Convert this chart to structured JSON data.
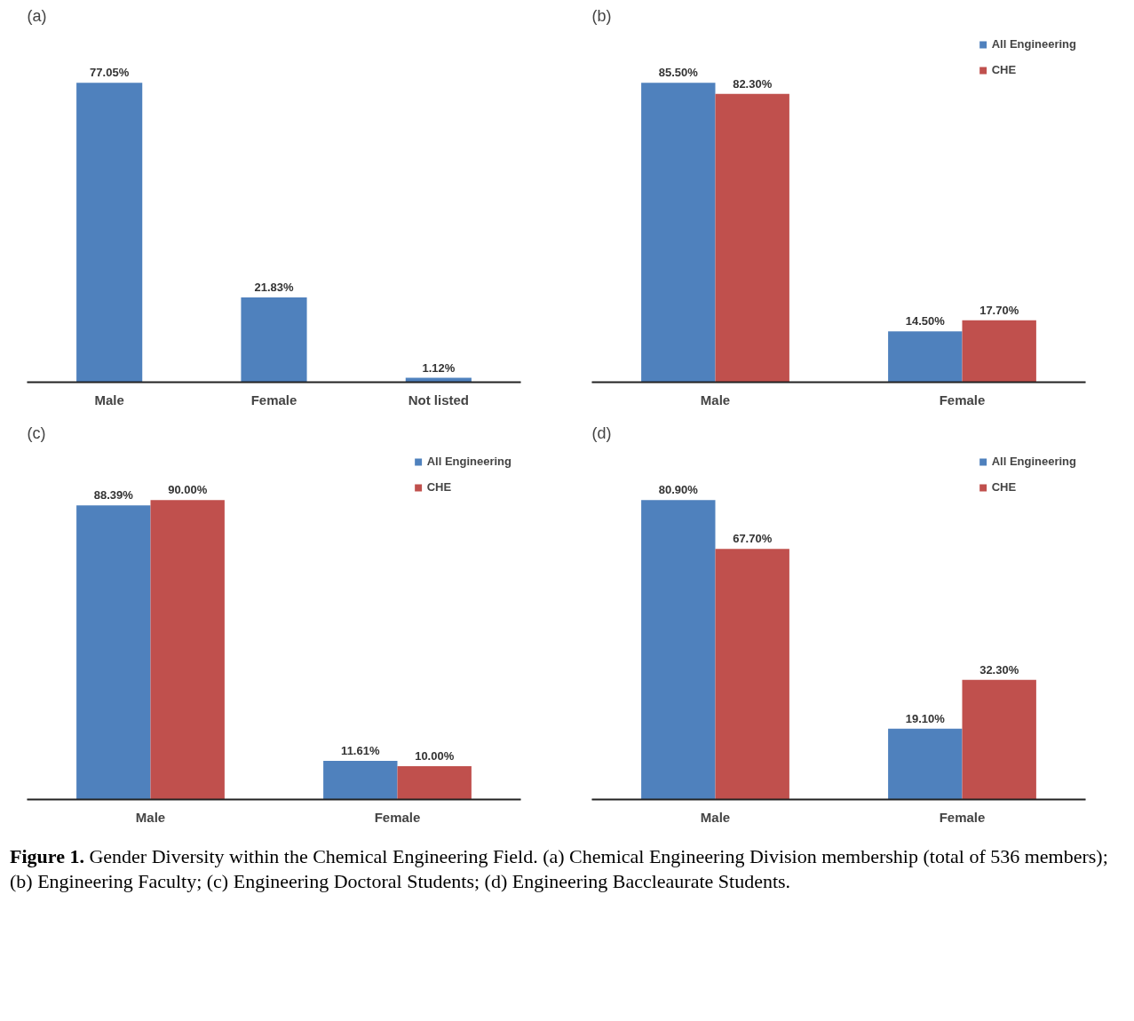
{
  "chart_data": [
    {
      "type": "bar",
      "title": "(a)",
      "categories": [
        "Male",
        "Female",
        "Not listed"
      ],
      "series": [
        {
          "color": "#4f81bd",
          "values": [
            77.05,
            21.83,
            1.12
          ],
          "value_labels": [
            "77.05%",
            "21.83%",
            "1.12%"
          ]
        }
      ],
      "grid": false,
      "legend": false
    },
    {
      "type": "bar",
      "title": "(b)",
      "categories": [
        "Male",
        "Female"
      ],
      "series": [
        {
          "name": "All Engineering",
          "color": "#4f81bd",
          "values": [
            85.5,
            14.5
          ],
          "value_labels": [
            "85.50%",
            "14.50%"
          ]
        },
        {
          "name": "CHE",
          "color": "#c0504d",
          "values": [
            82.3,
            17.7
          ],
          "value_labels": [
            "82.30%",
            "17.70%"
          ]
        }
      ],
      "grid": false,
      "legend": "top right"
    },
    {
      "type": "bar",
      "title": "(c)",
      "categories": [
        "Male",
        "Female"
      ],
      "series": [
        {
          "name": "All Engineering",
          "color": "#4f81bd",
          "values": [
            88.39,
            11.61
          ],
          "value_labels": [
            "88.39%",
            "11.61%"
          ]
        },
        {
          "name": "CHE",
          "color": "#c0504d",
          "values": [
            90.0,
            10.0
          ],
          "value_labels": [
            "90.00%",
            "10.00%"
          ]
        }
      ],
      "grid": false,
      "legend": "top right"
    },
    {
      "type": "bar",
      "title": "(d)",
      "categories": [
        "Male",
        "Female"
      ],
      "series": [
        {
          "name": "All Engineering",
          "color": "#4f81bd",
          "values": [
            80.9,
            19.1
          ],
          "value_labels": [
            "80.90%",
            "19.10%"
          ]
        },
        {
          "name": "CHE",
          "color": "#c0504d",
          "values": [
            67.7,
            32.3
          ],
          "value_labels": [
            "67.70%",
            "32.30%"
          ]
        }
      ],
      "grid": false,
      "legend": "top right",
      "annotations": [
        "Figure 1. Gender Diversity within the Chemical Engineering Field.  (a) Chemical Engineering Division membership (total of 536 members); (b) Engineering Faculty; (c) Engineering Doctoral Students; (d) Engineering Baccleaurate Students."
      ]
    }
  ]
}
